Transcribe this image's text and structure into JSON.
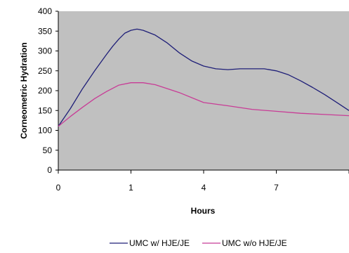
{
  "chart_data": {
    "type": "line",
    "xlabel": "Hours",
    "ylabel": "Corneometric Hydration",
    "x_tick_labels": [
      "0",
      "1",
      "4",
      "7"
    ],
    "x_tick_positions": [
      0,
      3,
      6,
      9
    ],
    "xlim": [
      0,
      12
    ],
    "y_ticks": [
      0,
      50,
      100,
      150,
      200,
      250,
      300,
      350,
      400
    ],
    "ylim": [
      0,
      400
    ],
    "grid": false,
    "plot_background": "#c0c0c0",
    "legend_position": "bottom",
    "series": [
      {
        "name": "UMC w/ HJE/JE",
        "color": "#1f1f78",
        "x": [
          0,
          0.5,
          1,
          1.5,
          2,
          2.25,
          2.5,
          2.75,
          3,
          3.25,
          3.5,
          4,
          4.5,
          5,
          5.5,
          6,
          6.5,
          7,
          7.5,
          8,
          8.5,
          9,
          9.5,
          10,
          10.5,
          11,
          11.5,
          12
        ],
        "y": [
          110,
          155,
          205,
          250,
          292,
          312,
          330,
          345,
          352,
          355,
          352,
          340,
          320,
          295,
          275,
          262,
          255,
          253,
          255,
          255,
          255,
          250,
          240,
          225,
          208,
          190,
          170,
          150
        ]
      },
      {
        "name": "UMC w/o HJE/JE",
        "color": "#c83c96",
        "x": [
          0,
          0.5,
          1,
          1.5,
          2,
          2.5,
          3,
          3.5,
          4,
          5,
          6,
          7,
          8,
          9,
          10,
          11,
          12
        ],
        "y": [
          110,
          135,
          158,
          180,
          198,
          214,
          220,
          220,
          215,
          195,
          170,
          162,
          153,
          148,
          143,
          140,
          137
        ]
      }
    ]
  }
}
